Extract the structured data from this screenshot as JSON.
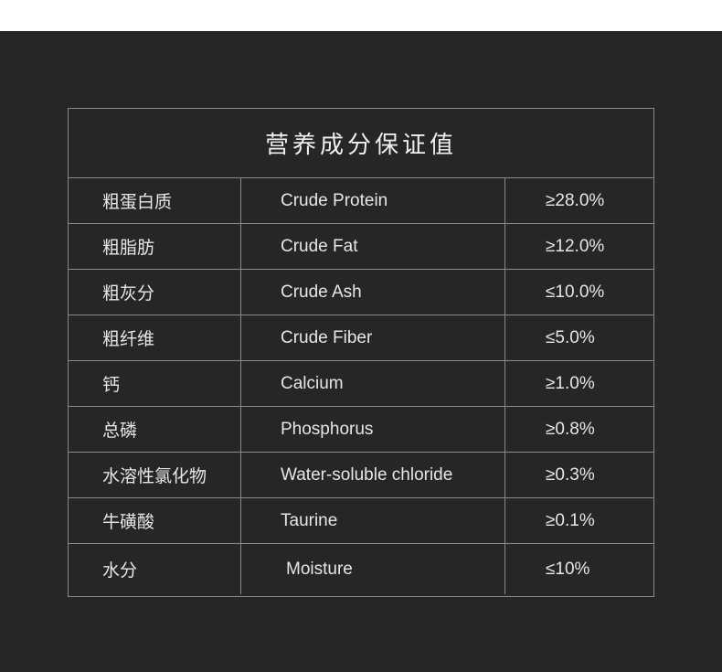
{
  "table": {
    "title": "营养成分保证值",
    "rows": [
      {
        "cn": "粗蛋白质",
        "en": "Crude Protein",
        "value": "≥28.0%"
      },
      {
        "cn": "粗脂肪",
        "en": "Crude Fat",
        "value": "≥12.0%"
      },
      {
        "cn": "粗灰分",
        "en": "Crude Ash",
        "value": "≤10.0%"
      },
      {
        "cn": "粗纤维",
        "en": "Crude Fiber",
        "value": "≤5.0%"
      },
      {
        "cn": "钙",
        "en": "Calcium",
        "value": "≥1.0%"
      },
      {
        "cn": "总磷",
        "en": "Phosphorus",
        "value": "≥0.8%"
      },
      {
        "cn": "水溶性氯化物",
        "en": "Water-soluble chloride",
        "value": "≥0.3%"
      },
      {
        "cn": "牛磺酸",
        "en": "Taurine",
        "value": "≥0.1%"
      },
      {
        "cn": "水分",
        "en": "Moisture",
        "value": "≤10%"
      }
    ]
  }
}
